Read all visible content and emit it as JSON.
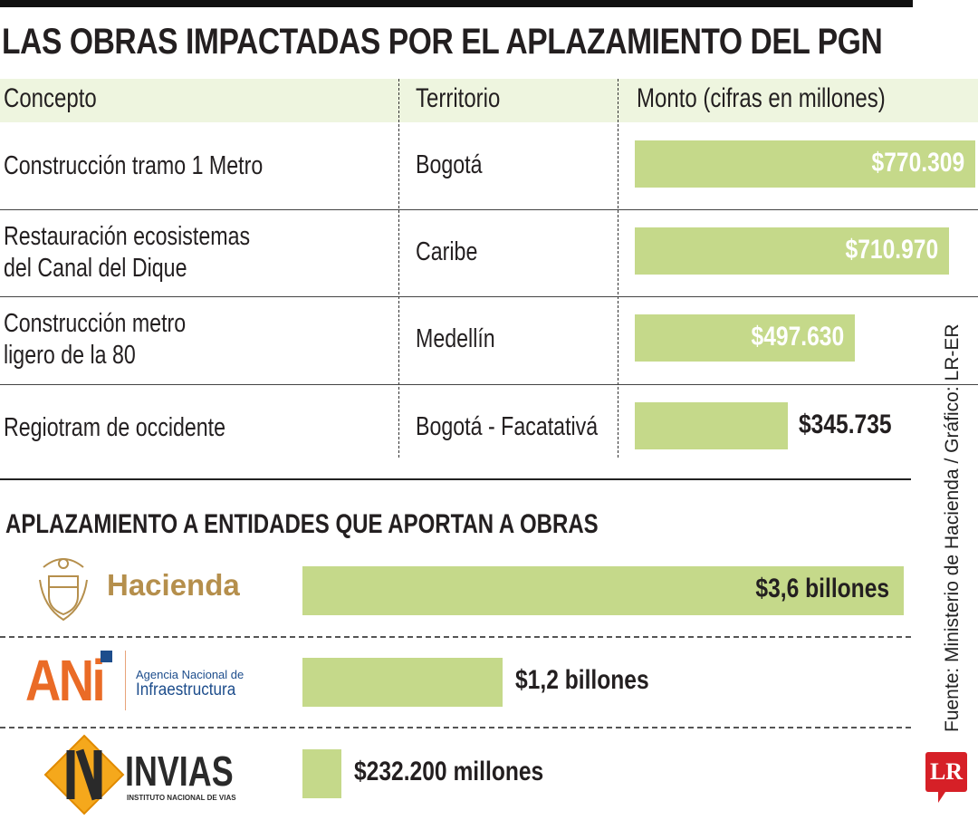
{
  "title": "LAS OBRAS IMPACTADAS POR EL APLAZAMIENTO DEL PGN",
  "table": {
    "headers": [
      "Concepto",
      "Territorio",
      "Monto (cifras en millones)"
    ]
  },
  "chart_data": [
    {
      "type": "bar",
      "orientation": "horizontal",
      "categories": [
        "Construcción tramo 1 Metro",
        "Restauración ecosistemas del Canal del Dique",
        "Construcción metro ligero de la 80",
        "Regiotram de occidente"
      ],
      "category_lines": [
        [
          "Construcción tramo 1 Metro"
        ],
        [
          "Restauración ecosistemas",
          "del Canal del Dique"
        ],
        [
          "Construcción metro",
          "ligero de la 80"
        ],
        [
          "Regiotram de occidente"
        ]
      ],
      "territories": [
        "Bogotá",
        "Caribe",
        "Medellín",
        "Bogotá - Facatativá"
      ],
      "values": [
        770309,
        710970,
        497630,
        345735
      ],
      "labels": [
        "$770.309",
        "$710.970",
        "$497.630",
        "$345.735"
      ],
      "unit": "millones",
      "color": "#c5d98a"
    },
    {
      "type": "bar",
      "orientation": "horizontal",
      "title": "APLAZAMIENTO A ENTIDADES QUE APORTAN A OBRAS",
      "categories": [
        "Hacienda",
        "ANI",
        "INVIAS"
      ],
      "values": [
        3600000,
        1200000,
        232200
      ],
      "labels": [
        "$3,6 billones",
        "$1,2 billones",
        "$232.200 millones"
      ],
      "color": "#c5d98a"
    }
  ],
  "logos": {
    "hacienda": "Hacienda",
    "ani": {
      "mark": "ANi",
      "line1": "Agencia Nacional de",
      "line2": "Infraestructura"
    },
    "invias": {
      "mark": "INVIAS",
      "sub": "INSTITUTO NACIONAL DE VIAS"
    }
  },
  "source": "Fuente: Ministerio de Hacienda / Gráfico: LR-ER",
  "brand": "LR"
}
